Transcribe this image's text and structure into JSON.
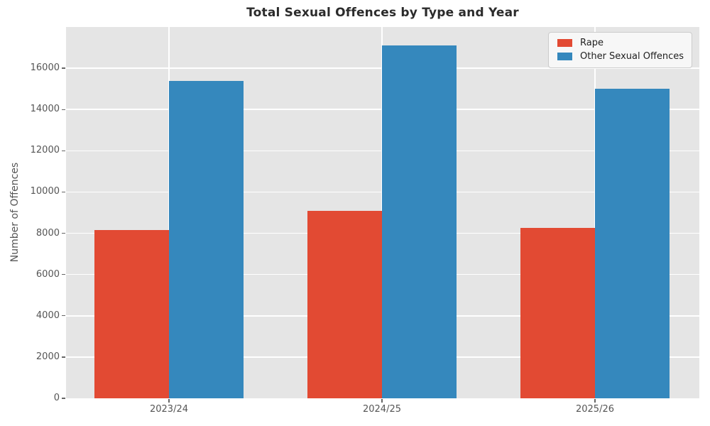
{
  "chart_data": {
    "type": "bar",
    "title": "Total Sexual Offences by Type and Year",
    "categories": [
      "2023/24",
      "2024/25",
      "2025/26"
    ],
    "series": [
      {
        "name": "Rape",
        "color": "#E24A33",
        "values": [
          8150,
          9100,
          8250
        ]
      },
      {
        "name": "Other Sexual Offences",
        "color": "#3588BD",
        "values": [
          15400,
          17100,
          15000
        ]
      }
    ],
    "xlabel": "",
    "ylabel": "Number of Offences",
    "ylim": [
      0,
      18000
    ],
    "yticks": [
      0,
      2000,
      4000,
      6000,
      8000,
      10000,
      12000,
      14000,
      16000
    ],
    "grid": true,
    "legend": {
      "position": "upper right",
      "labels": [
        "Rape",
        "Other Sexual Offences"
      ]
    },
    "styles": {
      "axes_background": "#E5E5E5",
      "grid_color": "#FFFFFF",
      "tick_label_color": "#555555",
      "title_color": "#2B2B2B",
      "legend_background": "#F7F7F7",
      "legend_border": "#CCCCCC"
    }
  }
}
